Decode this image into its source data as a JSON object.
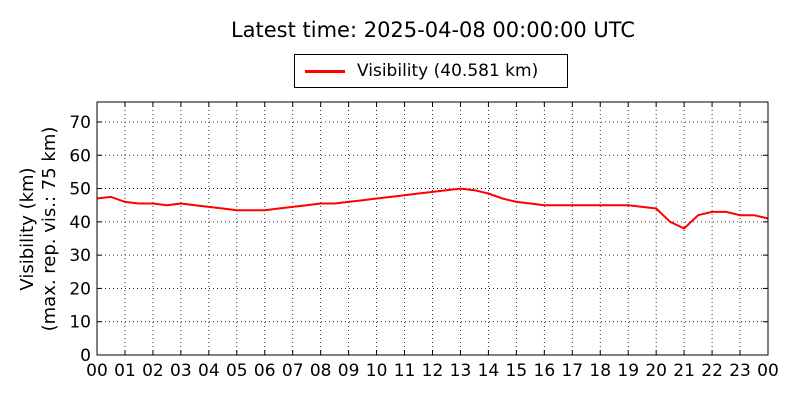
{
  "chart_data": {
    "type": "line",
    "title": "Latest time: 2025-04-08 00:00:00 UTC",
    "ylabel_line1": "Visibility (km)",
    "ylabel_line2": "(max. rep. vis.: 75 km)",
    "xlabel": "",
    "ylim": [
      0,
      76
    ],
    "xlim": [
      0,
      24
    ],
    "yticks": [
      "0",
      "10",
      "20",
      "30",
      "40",
      "50",
      "60",
      "70"
    ],
    "xticks": [
      "00",
      "01",
      "02",
      "03",
      "04",
      "05",
      "06",
      "07",
      "08",
      "09",
      "10",
      "11",
      "12",
      "13",
      "14",
      "15",
      "16",
      "17",
      "18",
      "19",
      "20",
      "21",
      "22",
      "23",
      "00"
    ],
    "grid": true,
    "legend_position": "top-center",
    "series": [
      {
        "name": "Visibility (40.581 km)",
        "color": "#ff0000",
        "x": [
          0,
          0.5,
          1,
          1.5,
          2,
          2.5,
          3,
          3.5,
          4,
          4.5,
          5,
          5.5,
          6,
          6.5,
          7,
          7.5,
          8,
          8.5,
          9,
          9.5,
          10,
          10.5,
          11,
          11.5,
          12,
          12.5,
          13,
          13.5,
          14,
          14.5,
          15,
          15.5,
          16,
          16.5,
          17,
          17.5,
          18,
          18.5,
          19,
          19.5,
          20,
          20.5,
          21,
          21.5,
          22,
          22.5,
          23,
          23.5,
          24
        ],
        "y": [
          47,
          47.5,
          46,
          45.5,
          45.5,
          45,
          45.5,
          45,
          44.5,
          44,
          43.5,
          43.5,
          43.5,
          44,
          44.5,
          45,
          45.5,
          45.5,
          46,
          46.5,
          47,
          47.5,
          48,
          48.5,
          49,
          49.5,
          50,
          49.5,
          48.5,
          47,
          46,
          45.5,
          45,
          45,
          45,
          45,
          45,
          45,
          45,
          44.5,
          44,
          40,
          38,
          42,
          43,
          43,
          42,
          42,
          41
        ]
      }
    ]
  }
}
